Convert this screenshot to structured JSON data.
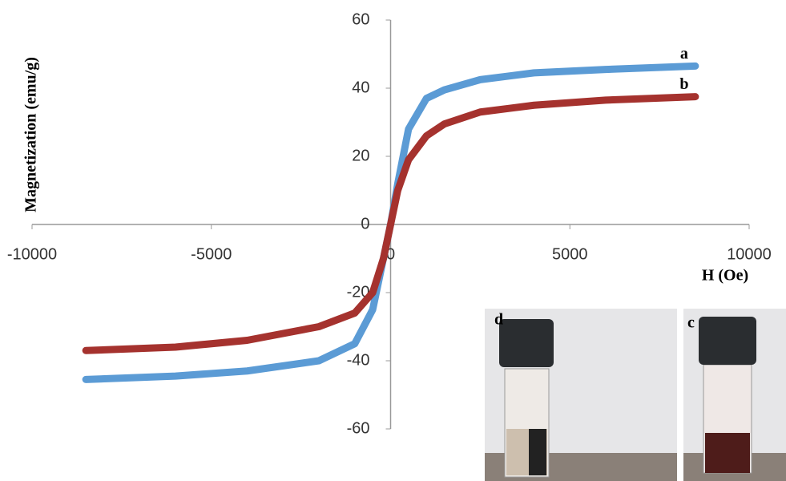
{
  "chart_data": {
    "type": "line",
    "x_label": "H (Oe)",
    "y_label": "Magnetization  (emu/g)",
    "x": [
      -8500,
      -6000,
      -4000,
      -2000,
      -1000,
      -500,
      -200,
      0,
      200,
      500,
      1000,
      1500,
      2500,
      4000,
      6000,
      8500
    ],
    "series": [
      {
        "name": "a",
        "color": "#5b9bd5",
        "values": [
          -45.5,
          -44.5,
          -43,
          -40,
          -35,
          -25,
          -10,
          0,
          12,
          28,
          37,
          39.5,
          42.5,
          44.5,
          45.5,
          46.5
        ]
      },
      {
        "name": "b",
        "color": "#a5322e",
        "values": [
          -37,
          -36,
          -34,
          -30,
          -26,
          -20,
          -10,
          0,
          10,
          19,
          26,
          29.5,
          33,
          35,
          36.5,
          37.5
        ]
      }
    ],
    "xlim": [
      -10000,
      10000
    ],
    "xticks": [
      -10000,
      -5000,
      0,
      5000,
      10000
    ],
    "ylim": [
      -60,
      60
    ],
    "yticks": [
      -60,
      -40,
      -20,
      0,
      20,
      40,
      60
    ],
    "inset_labels": [
      "d",
      "c"
    ]
  }
}
